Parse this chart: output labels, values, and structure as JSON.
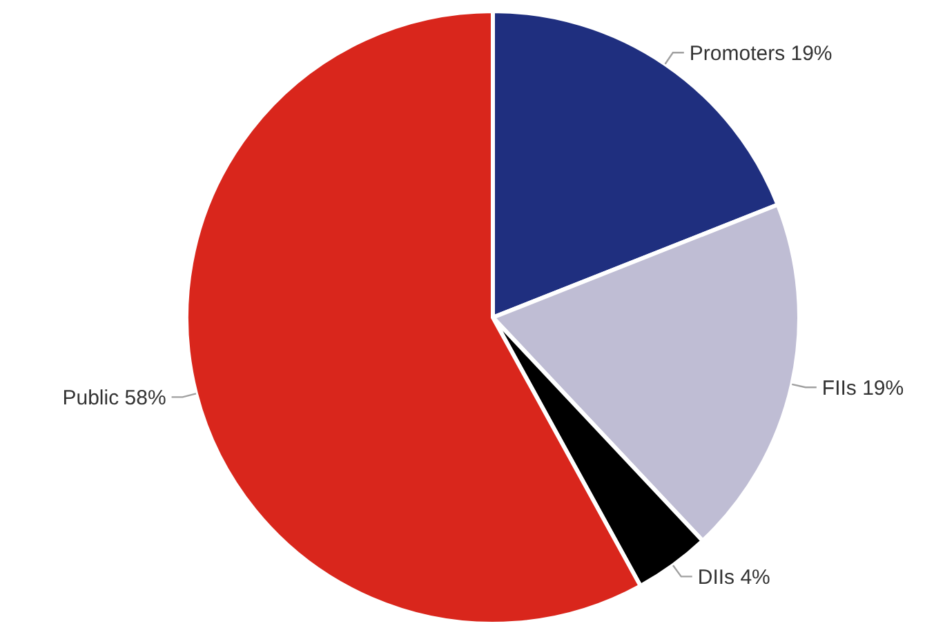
{
  "chart_data": {
    "type": "pie",
    "categories": [
      "Promoters",
      "FIIs",
      "DIIs",
      "Public"
    ],
    "values": [
      19,
      19,
      4,
      58
    ],
    "colors": [
      "#1f2f7f",
      "#bfbdd4",
      "#000000",
      "#d9261c"
    ],
    "value_labels": [
      "19%",
      "19%",
      "4%",
      "58%"
    ],
    "legend": false
  }
}
